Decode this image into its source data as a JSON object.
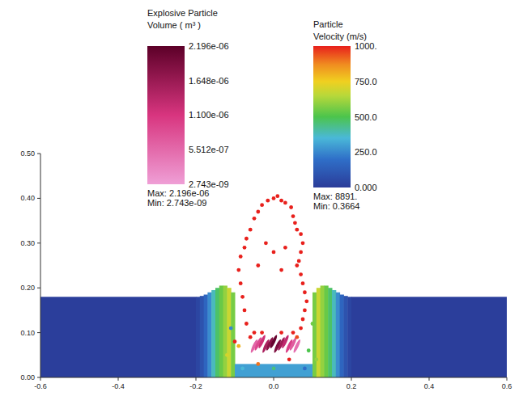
{
  "chart_data": {
    "type": "scatter",
    "xlim": [
      -0.6,
      0.6
    ],
    "ylim": [
      0,
      0.5
    ],
    "xticks": [
      -0.6,
      -0.4,
      -0.2,
      {
        "value": 0,
        "label": "0.0"
      },
      0.2,
      0.4,
      0.6
    ],
    "yticks": [
      {
        "value": 0,
        "label": "0.00"
      },
      {
        "value": 0.1,
        "label": "0.10"
      },
      {
        "value": 0.2,
        "label": "0.20"
      },
      {
        "value": 0.3,
        "label": "0.30"
      },
      {
        "value": 0.4,
        "label": "0.40"
      },
      {
        "value": 0.5,
        "label": "0.50"
      }
    ],
    "field": {
      "x0": [
        -0.6,
        -0.2,
        -0.19,
        -0.18,
        -0.17,
        -0.16,
        -0.15,
        -0.14,
        -0.13,
        -0.12,
        -0.11,
        -0.1,
        0.1,
        0.11,
        0.12,
        0.13,
        0.14,
        0.15,
        0.16,
        0.17,
        0.18,
        0.19,
        0.2
      ],
      "x1": [
        -0.2,
        -0.19,
        -0.18,
        -0.17,
        -0.16,
        -0.15,
        -0.14,
        -0.13,
        -0.12,
        -0.11,
        -0.1,
        0.1,
        0.11,
        0.12,
        0.13,
        0.14,
        0.15,
        0.16,
        0.17,
        0.18,
        0.19,
        0.2,
        0.6
      ],
      "bottom": [
        0,
        0,
        0,
        0,
        0,
        0,
        0,
        0,
        0,
        0,
        0,
        0,
        0,
        0,
        0,
        0,
        0,
        0,
        0,
        0,
        0,
        0,
        0
      ],
      "top": [
        0.18,
        0.18,
        0.182,
        0.185,
        0.19,
        0.195,
        0.2,
        0.205,
        0.205,
        0.2,
        0.19,
        0.03,
        0.19,
        0.2,
        0.205,
        0.205,
        0.2,
        0.195,
        0.19,
        0.185,
        0.182,
        0.18,
        0.18
      ],
      "velocity": [
        8,
        40,
        90,
        160,
        260,
        380,
        470,
        540,
        600,
        680,
        560,
        300,
        560,
        680,
        600,
        540,
        470,
        380,
        260,
        160,
        90,
        40,
        8
      ]
    },
    "particles": {
      "x": [
        -0.07,
        -0.075,
        -0.08,
        -0.085,
        -0.09,
        -0.085,
        -0.075,
        -0.07,
        -0.06,
        -0.05,
        -0.04,
        -0.03,
        -0.015,
        0.0,
        0.01,
        0.02,
        0.03,
        0.045,
        0.05,
        0.055,
        0.06,
        0.07,
        0.075,
        0.07,
        0.065,
        0.06,
        0.07,
        0.075,
        0.08,
        0.085,
        0.08,
        0.075,
        0.07,
        -0.02,
        0.0,
        0.03,
        -0.04,
        0.02,
        -0.1,
        -0.09,
        -0.06,
        -0.05,
        0.05,
        0.06,
        0.09,
        -0.12,
        0.11,
        -0.03,
        0.02,
        0.08,
        -0.08,
        0.0,
        -0.04,
        0.04,
        -0.11,
        0.1
      ],
      "y": [
        0.12,
        0.15,
        0.18,
        0.21,
        0.24,
        0.27,
        0.29,
        0.31,
        0.33,
        0.355,
        0.37,
        0.385,
        0.395,
        0.4,
        0.405,
        0.395,
        0.39,
        0.38,
        0.36,
        0.345,
        0.33,
        0.32,
        0.3,
        0.28,
        0.26,
        0.25,
        0.23,
        0.21,
        0.19,
        0.17,
        0.15,
        0.13,
        0.11,
        0.3,
        0.28,
        0.29,
        0.25,
        0.24,
        0.08,
        0.07,
        0.09,
        0.1,
        0.1,
        0.09,
        0.06,
        0.05,
        0.04,
        0.1,
        0.1,
        0.02,
        0.02,
        0.02,
        0.03,
        0.04,
        0.11,
        0.12
      ],
      "velocity": [
        1200,
        1300,
        1400,
        1500,
        1600,
        1700,
        1800,
        1900,
        2000,
        2100,
        2200,
        2300,
        2400,
        2500,
        2400,
        2300,
        2200,
        2100,
        2000,
        1900,
        1800,
        1700,
        1600,
        1500,
        1400,
        1300,
        1200,
        1100,
        1100,
        1050,
        1050,
        1020,
        1010,
        1500,
        1400,
        1450,
        1300,
        1350,
        1100,
        800,
        1050,
        1200,
        1150,
        950,
        500,
        700,
        600,
        1100,
        1080,
        200,
        350,
        450,
        900,
        1000,
        250,
        550
      ]
    },
    "explosive": {
      "x": [
        -0.05,
        -0.04,
        -0.03,
        -0.02,
        -0.01,
        0.0,
        0.01,
        0.02,
        0.03,
        0.04,
        0.05,
        0.06
      ],
      "y": [
        0.07,
        0.075,
        0.08,
        0.07,
        0.075,
        0.08,
        0.07,
        0.075,
        0.08,
        0.07,
        0.075,
        0.07
      ],
      "volume": [
        6e-07,
        9e-07,
        1.2e-06,
        1.5e-06,
        1.8e-06,
        2.1e-06,
        1.9e-06,
        1.6e-06,
        1.3e-06,
        1e-06,
        7e-07,
        5e-07
      ]
    },
    "colorbars": [
      {
        "title": [
          "Explosive Particle",
          "Volume ( m³ )"
        ],
        "range": [
          2.743e-09,
          2.196e-06
        ],
        "ticks": [
          {
            "value": 2.196e-06,
            "label": "2.196e-06"
          },
          {
            "value": 1.648e-06,
            "label": "1.648e-06"
          },
          {
            "value": 1.1e-06,
            "label": "1.100e-06"
          },
          {
            "value": 5.512e-07,
            "label": "5.512e-07"
          },
          {
            "value": 2.743e-09,
            "label": "2.743e-09"
          }
        ],
        "max": {
          "value": 2.196e-06,
          "label": "Max: 2.196e-06"
        },
        "min": {
          "value": 2.743e-09,
          "label": "Min: 2.743e-09"
        }
      },
      {
        "title": [
          "Particle",
          "Velocity (m/s)"
        ],
        "range": [
          0,
          1000
        ],
        "ticks": [
          {
            "value": 1000,
            "label": "1000."
          },
          {
            "value": 750,
            "label": "750.0"
          },
          {
            "value": 500,
            "label": "500.0"
          },
          {
            "value": 250,
            "label": "250.0"
          },
          {
            "value": 0,
            "label": "0.000"
          }
        ],
        "max": {
          "value": 8891,
          "label": "Max: 8891."
        },
        "min": {
          "value": 0.3664,
          "label": "Min: 0.3664"
        }
      }
    ]
  }
}
